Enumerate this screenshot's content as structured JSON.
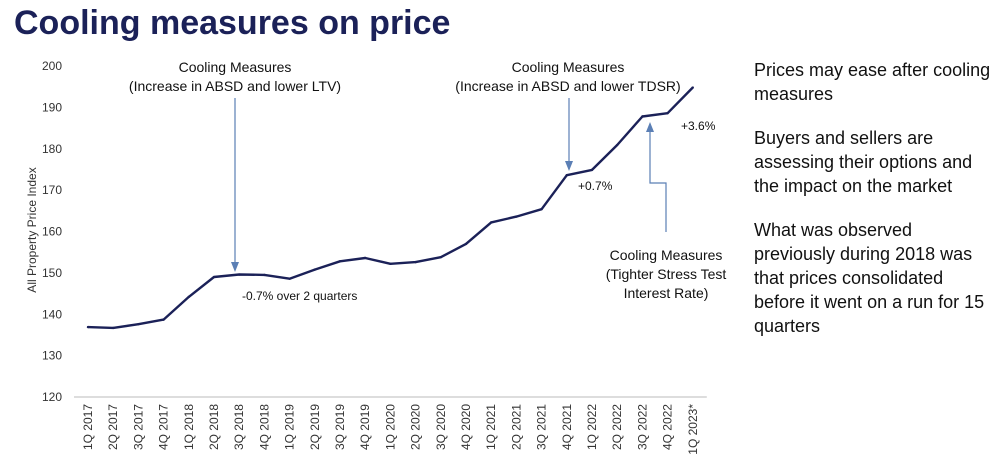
{
  "title": "Cooling measures on price",
  "commentary": [
    "Prices may ease after cooling measures",
    "Buyers and sellers are assessing their options and the impact on the market",
    "What was observed previously during 2018 was that prices consolidated before it went on a run for 15 quarters"
  ],
  "colors": {
    "line": "#1b2158",
    "arrow": "#5b7fb5",
    "title": "#1b2158"
  },
  "chart_data": {
    "type": "line",
    "ylabel": "All Property Price Index",
    "ylim": [
      120,
      200
    ],
    "yticks": [
      120,
      130,
      140,
      150,
      160,
      170,
      180,
      190,
      200
    ],
    "categories": [
      "1Q 2017",
      "2Q 2017",
      "3Q 2017",
      "4Q 2017",
      "1Q 2018",
      "2Q 2018",
      "3Q 2018",
      "4Q 2018",
      "1Q 2019",
      "2Q 2019",
      "3Q 2019",
      "4Q 2019",
      "1Q 2020",
      "2Q 2020",
      "3Q 2020",
      "4Q 2020",
      "1Q 2021",
      "2Q 2021",
      "3Q 2021",
      "4Q 2021",
      "1Q 2022",
      "2Q 2022",
      "3Q 2022",
      "4Q 2022",
      "1Q 2023*"
    ],
    "values": [
      136.9,
      136.7,
      137.6,
      138.7,
      144.2,
      149.0,
      149.6,
      149.5,
      148.6,
      150.8,
      152.8,
      153.6,
      152.2,
      152.6,
      153.8,
      157.0,
      162.2,
      163.6,
      165.4,
      173.6,
      174.9,
      180.9,
      187.8,
      188.6,
      194.8
    ],
    "grid": false,
    "annotations": [
      {
        "id": "cm2018",
        "lines": [
          "Cooling Measures",
          "(Increase in ABSD and lower LTV)"
        ],
        "target": "3Q 2018"
      },
      {
        "id": "cm2021",
        "lines": [
          "Cooling Measures",
          "(Increase in ABSD and lower TDSR)"
        ],
        "target": "4Q 2021"
      },
      {
        "id": "cm2022",
        "lines": [
          "Cooling Measures",
          "(Tighter Stress Test",
          "Interest Rate)"
        ],
        "target": "3Q 2022"
      },
      {
        "id": "chg2018",
        "text": "-0.7% over 2 quarters"
      },
      {
        "id": "chg2021",
        "text": "+0.7%"
      },
      {
        "id": "chg2023",
        "text": "+3.6%"
      }
    ]
  }
}
